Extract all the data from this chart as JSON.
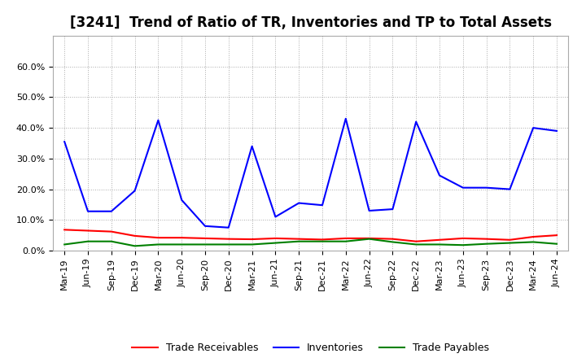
{
  "title": "[3241]  Trend of Ratio of TR, Inventories and TP to Total Assets",
  "labels": [
    "Mar-19",
    "Jun-19",
    "Sep-19",
    "Dec-19",
    "Mar-20",
    "Jun-20",
    "Sep-20",
    "Dec-20",
    "Mar-21",
    "Jun-21",
    "Sep-21",
    "Dec-21",
    "Mar-22",
    "Jun-22",
    "Sep-22",
    "Dec-22",
    "Mar-23",
    "Jun-23",
    "Sep-23",
    "Dec-23",
    "Mar-24",
    "Jun-24"
  ],
  "trade_receivables": [
    0.068,
    0.065,
    0.062,
    0.048,
    0.042,
    0.042,
    0.04,
    0.038,
    0.037,
    0.04,
    0.038,
    0.036,
    0.04,
    0.04,
    0.038,
    0.03,
    0.035,
    0.04,
    0.038,
    0.035,
    0.045,
    0.05
  ],
  "inventories": [
    0.355,
    0.128,
    0.128,
    0.195,
    0.425,
    0.165,
    0.08,
    0.075,
    0.34,
    0.11,
    0.155,
    0.148,
    0.43,
    0.13,
    0.135,
    0.42,
    0.245,
    0.205,
    0.205,
    0.2,
    0.4,
    0.39
  ],
  "trade_payables": [
    0.02,
    0.03,
    0.03,
    0.015,
    0.02,
    0.02,
    0.02,
    0.02,
    0.02,
    0.025,
    0.03,
    0.03,
    0.03,
    0.038,
    0.028,
    0.02,
    0.02,
    0.018,
    0.022,
    0.025,
    0.028,
    0.022
  ],
  "tr_color": "#ff0000",
  "inv_color": "#0000ff",
  "tp_color": "#008000",
  "background_color": "#ffffff",
  "plot_bg_color": "#ffffff",
  "grid_color": "#aaaaaa",
  "ylim": [
    0.0,
    0.7
  ],
  "yticks": [
    0.0,
    0.1,
    0.2,
    0.3,
    0.4,
    0.5,
    0.6
  ],
  "title_fontsize": 12,
  "legend_fontsize": 9,
  "tick_fontsize": 8
}
